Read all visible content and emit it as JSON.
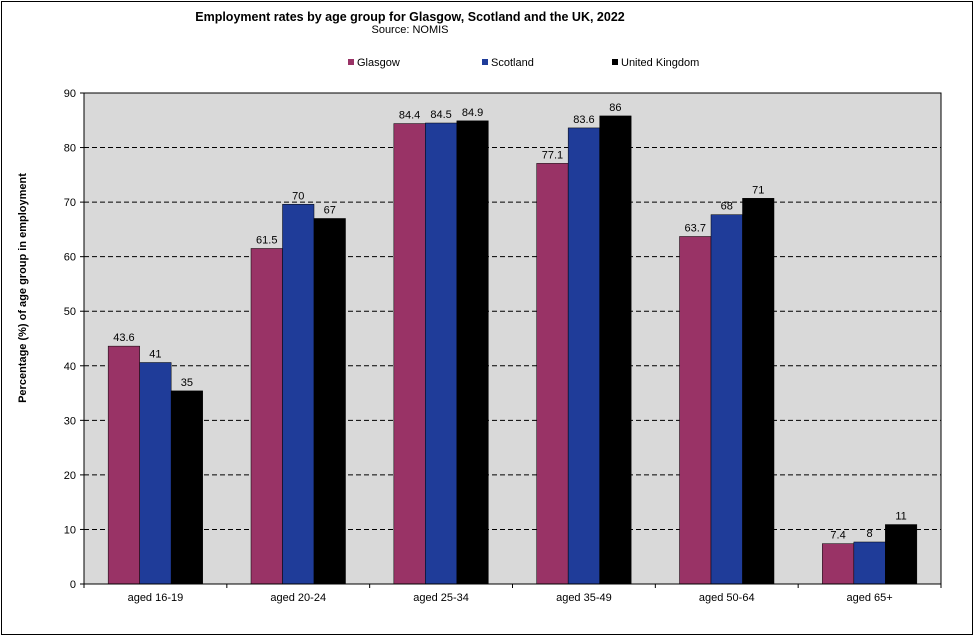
{
  "chart_data": {
    "type": "bar",
    "title": "Employment rates by age group for Glasgow, Scotland and the UK, 2022",
    "subtitle": "Source: NOMIS",
    "xlabel": "",
    "ylabel": "Percentage (%) of age group in employment",
    "categories": [
      "aged 16-19",
      "aged 20-24",
      "aged 25-34",
      "aged 35-49",
      "aged 50-64",
      "aged 65+"
    ],
    "series": [
      {
        "name": "Glasgow",
        "color": "#993366",
        "values": [
          43.6,
          61.5,
          84.4,
          77.1,
          63.7,
          7.4
        ],
        "labels": [
          "43.6",
          "61.5",
          "84.4",
          "77.1",
          "63.7",
          "7.4"
        ]
      },
      {
        "name": "Scotland",
        "color": "#1F3C99",
        "values": [
          40.6,
          69.6,
          84.5,
          83.6,
          67.7,
          7.7
        ],
        "labels": [
          "41",
          "70",
          "84.5",
          "83.6",
          "68",
          "8"
        ]
      },
      {
        "name": "United Kingdom",
        "color": "#000000",
        "values": [
          35.4,
          67.0,
          84.9,
          85.8,
          70.7,
          10.9
        ],
        "labels": [
          "35",
          "67",
          "84.9",
          "86",
          "71",
          "11"
        ]
      }
    ],
    "ylim": [
      0,
      90
    ],
    "yticks": [
      0,
      10,
      20,
      30,
      40,
      50,
      60,
      70,
      80,
      90
    ],
    "grid": true,
    "legend": "top"
  }
}
